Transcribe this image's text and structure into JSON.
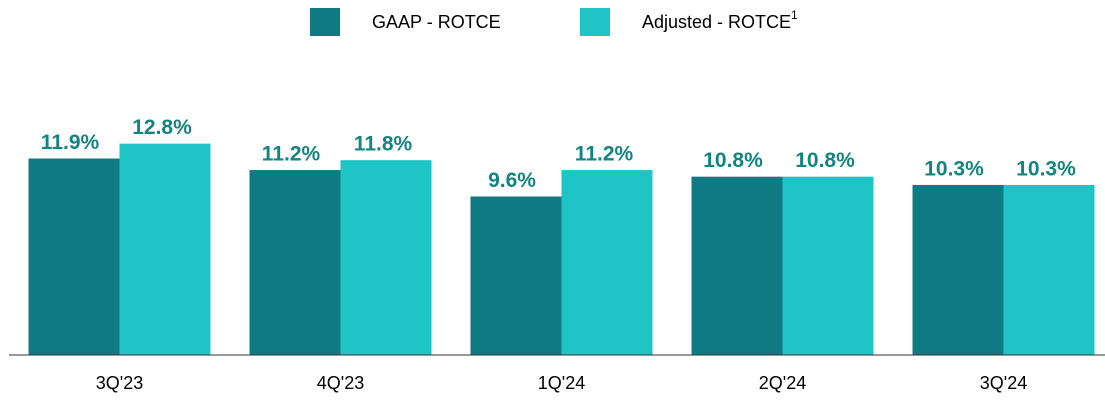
{
  "chart_data": {
    "type": "bar",
    "categories": [
      "3Q'23",
      "4Q'23",
      "1Q'24",
      "2Q'24",
      "3Q'24"
    ],
    "series": [
      {
        "name": "GAAP - ROTCE",
        "color": "#0f7a82",
        "values": [
          11.9,
          11.2,
          9.6,
          10.8,
          10.3
        ],
        "value_labels": [
          "11.9%",
          "11.2%",
          "9.6%",
          "10.8%",
          "10.3%"
        ]
      },
      {
        "name": "Adjusted - ROTCE",
        "name_superscript": "1",
        "color": "#1fc5c6",
        "values": [
          12.8,
          11.8,
          11.2,
          10.8,
          10.3
        ],
        "value_labels": [
          "12.8%",
          "11.8%",
          "11.2%",
          "10.8%",
          "10.3%"
        ]
      }
    ],
    "ylim": [
      0,
      21.5
    ],
    "legend": "top"
  }
}
